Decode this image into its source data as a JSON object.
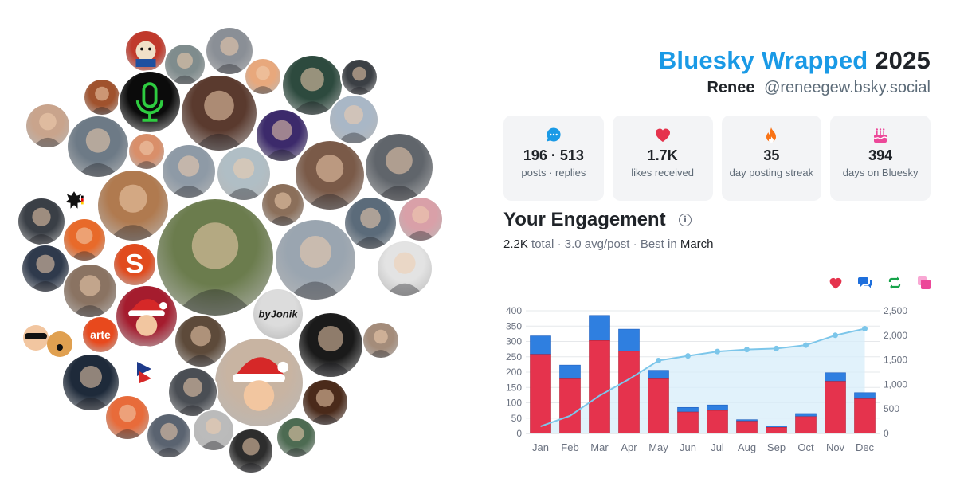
{
  "header": {
    "title_brand": "Bluesky Wrapped",
    "title_year": "2025",
    "display_name": "Renee",
    "handle": "@reneegew.bsky.social"
  },
  "stats": [
    {
      "icon": "chat-bubble-icon",
      "color": "#1a9ae6",
      "value": "196 · 513",
      "label": "posts · replies"
    },
    {
      "icon": "heart-icon",
      "color": "#e5334d",
      "value": "1.7K",
      "label": "likes received"
    },
    {
      "icon": "flame-icon",
      "color": "#f97316",
      "value": "35",
      "label": "day posting streak"
    },
    {
      "icon": "cake-icon",
      "color": "#ec4899",
      "value": "394",
      "label": "days on Bluesky"
    }
  ],
  "engagement": {
    "title": "Your Engagement",
    "total": "2.2K",
    "total_label": "total",
    "avg": "3.0 avg/post",
    "best_label": "Best in",
    "best_month": "March"
  },
  "legend_icons": [
    {
      "icon": "heart-icon",
      "color": "#e5334d"
    },
    {
      "icon": "reply-bubbles-icon",
      "color": "#1e6fdc"
    },
    {
      "icon": "repost-icon",
      "color": "#16a34a"
    },
    {
      "icon": "quote-icon",
      "color": "#ec4899"
    }
  ],
  "chart_data": {
    "type": "bar",
    "categories": [
      "Jan",
      "Feb",
      "Mar",
      "Apr",
      "May",
      "Jun",
      "Jul",
      "Aug",
      "Sep",
      "Oct",
      "Nov",
      "Dec"
    ],
    "series": [
      {
        "values": [
          258,
          178,
          303,
          268,
          178,
          70,
          75,
          40,
          20,
          55,
          170,
          113
        ]
      },
      {
        "values": [
          60,
          45,
          82,
          72,
          28,
          15,
          18,
          5,
          5,
          10,
          28,
          20
        ]
      },
      {
        "type": "line",
        "axis": "right",
        "values": [
          145,
          360,
          770,
          1105,
          1485,
          1580,
          1670,
          1710,
          1730,
          1800,
          2000,
          2135
        ]
      }
    ],
    "ylim": [
      0,
      400
    ],
    "yticks": [
      0,
      50,
      100,
      150,
      200,
      250,
      300,
      350,
      400
    ],
    "y2lim": [
      0,
      2500
    ],
    "y2ticks": [
      0,
      500,
      1000,
      1500,
      2000,
      2500
    ],
    "y2tick_labels": [
      "0",
      "500",
      "1,000",
      "1,500",
      "2,000",
      "2,500"
    ],
    "colors": {
      "likes": "#e5334d",
      "replies": "#2f7fe0",
      "cumulative": "#7cc6ea"
    },
    "grid": true
  },
  "avatars": [
    {
      "color": "#c0392b",
      "ini": "",
      "icon": "toy-bear-avatar"
    },
    {
      "color": "#7f8c8d",
      "ini": ""
    },
    {
      "color": "#8a8f96",
      "ini": ""
    },
    {
      "color": "#e8a87c",
      "ini": ""
    },
    {
      "color": "#2d4a3e",
      "ini": ""
    },
    {
      "color": "#3b3f44",
      "ini": ""
    },
    {
      "color": "#a0522d",
      "ini": ""
    },
    {
      "color": "#0b0b0b",
      "ini": "",
      "icon": "microphone-avatar"
    },
    {
      "color": "#5a3a2e",
      "ini": ""
    },
    {
      "color": "#a9b7c6",
      "ini": ""
    },
    {
      "color": "#c9a48c",
      "ini": ""
    },
    {
      "color": "#6d7a86",
      "ini": ""
    },
    {
      "color": "#d98f6a",
      "ini": ""
    },
    {
      "color": "#8e9aa6",
      "ini": ""
    },
    {
      "color": "#b0bec5",
      "ini": ""
    },
    {
      "color": "#3c2a6b",
      "ini": ""
    },
    {
      "color": "#7a5a48",
      "ini": ""
    },
    {
      "color": "#60656b",
      "ini": ""
    },
    {
      "color": "#ffffff",
      "ini": "",
      "icon": "eagle-avatar"
    },
    {
      "color": "#b07a4f",
      "ini": ""
    },
    {
      "color": "#8b6f5a",
      "ini": ""
    },
    {
      "color": "#5b6b7a",
      "ini": ""
    },
    {
      "color": "#d9a0a8",
      "ini": ""
    },
    {
      "color": "#3a3f46",
      "ini": ""
    },
    {
      "color": "#e86a2a",
      "ini": ""
    },
    {
      "color": "#e14b1e",
      "ini": "",
      "icon": "s-logo-avatar"
    },
    {
      "color": "#6b7c4d",
      "ini": ""
    },
    {
      "color": "#9aa5b0",
      "ini": ""
    },
    {
      "color": "#e3e3e3",
      "ini": ""
    },
    {
      "color": "#2f3a4c",
      "ini": ""
    },
    {
      "color": "#8a7362",
      "ini": ""
    },
    {
      "color": "#ffffff",
      "ini": "",
      "icon": "emoji-dog-avatar"
    },
    {
      "color": "#e8491d",
      "ini": "",
      "icon": "arte-logo-avatar"
    },
    {
      "color": "#a51c2e",
      "ini": "",
      "icon": "santa-avatar"
    },
    {
      "color": "#5d4a3a",
      "ini": ""
    },
    {
      "color": "#dcdcdc",
      "ini": "",
      "icon": "bylonik-logo-avatar"
    },
    {
      "color": "#1a1a1a",
      "ini": ""
    },
    {
      "color": "#a48c7a",
      "ini": ""
    },
    {
      "color": "#c8b4a2",
      "ini": "",
      "icon": "santa-hat-avatar"
    },
    {
      "color": "#1e2a3a",
      "ini": ""
    },
    {
      "color": "#ffffff",
      "ini": "",
      "icon": "le-coq-sportif-avatar"
    },
    {
      "color": "#4a4e54",
      "ini": ""
    },
    {
      "color": "#4a2a1a",
      "ini": ""
    },
    {
      "color": "#e86b3a",
      "ini": ""
    },
    {
      "color": "#5a6370",
      "ini": ""
    },
    {
      "color": "#bbbbbb",
      "ini": ""
    },
    {
      "color": "#2d2d2d",
      "ini": ""
    },
    {
      "color": "#4d6b52",
      "ini": ""
    }
  ]
}
